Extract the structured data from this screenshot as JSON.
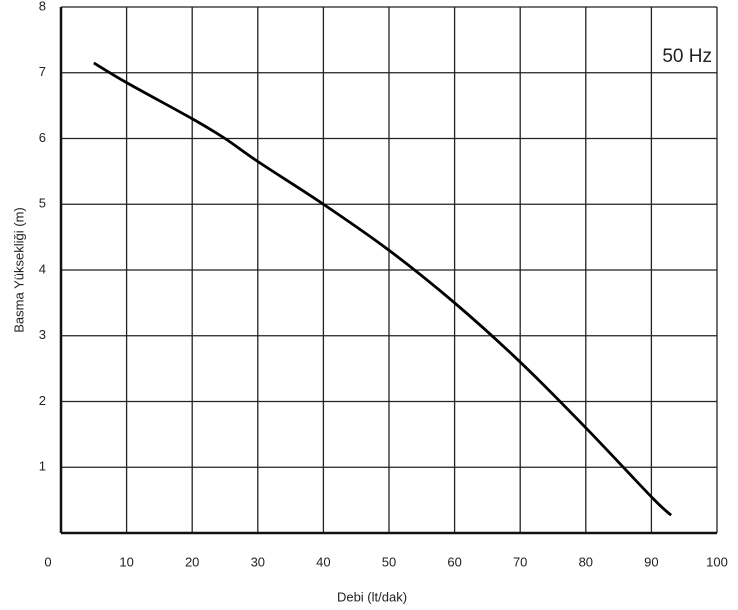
{
  "chart_data": {
    "type": "line",
    "x_label": "Debi (lt/dak)",
    "y_label": "Basma Yüksekliği (m)",
    "annotation": "50 Hz",
    "x": [
      5,
      10,
      20,
      25,
      30,
      40,
      50,
      60,
      70,
      80,
      90,
      93
    ],
    "series": [
      {
        "color": "#000000",
        "values": [
          7.15,
          6.85,
          6.3,
          6.0,
          5.65,
          5.0,
          4.3,
          3.5,
          2.6,
          1.6,
          0.55,
          0.27
        ]
      }
    ],
    "xlim": [
      0,
      100
    ],
    "xticks": [
      0,
      10,
      20,
      30,
      40,
      50,
      60,
      70,
      80,
      90,
      100
    ],
    "ylim": [
      0,
      8
    ],
    "yticks": [
      1,
      2,
      3,
      4,
      5,
      6,
      7,
      8
    ],
    "grid": true
  }
}
